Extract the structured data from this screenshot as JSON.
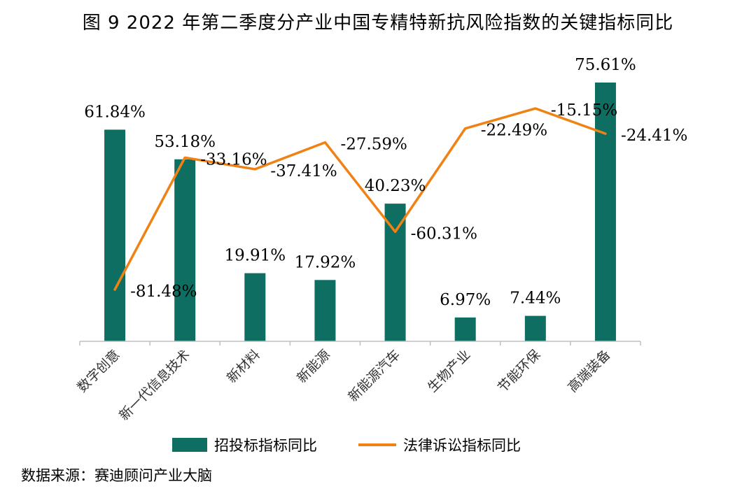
{
  "chart_data": {
    "type": "bar",
    "title": "图 9 2022 年第二季度分产业中国专精特新抗风险指数的关键指标同比",
    "categories": [
      "数字创意",
      "新一代信息技术",
      "新材料",
      "新能源",
      "新能源汽车",
      "生物产业",
      "节能环保",
      "高端装备"
    ],
    "series": [
      {
        "name": "招投标指标同比",
        "kind": "bar",
        "values": [
          61.84,
          53.18,
          19.91,
          17.92,
          40.23,
          6.97,
          7.44,
          75.61
        ],
        "labels": [
          "61.84%",
          "53.18%",
          "19.91%",
          "17.92%",
          "40.23%",
          "6.97%",
          "7.44%",
          "75.61%"
        ],
        "color": "#0E6E62"
      },
      {
        "name": "法律诉讼指标同比",
        "kind": "line",
        "values": [
          -81.48,
          -33.16,
          -37.41,
          -27.59,
          -60.31,
          -22.49,
          -15.15,
          -24.41
        ],
        "labels": [
          "-81.48%",
          "-33.16%",
          "-37.41%",
          "-27.59%",
          "-60.31%",
          "-22.49%",
          "-15.15%",
          "-24.41%"
        ],
        "color": "#F08214"
      }
    ],
    "legend_position": "bottom",
    "grid": false
  },
  "source": "数据来源：赛迪顾问产业大脑"
}
